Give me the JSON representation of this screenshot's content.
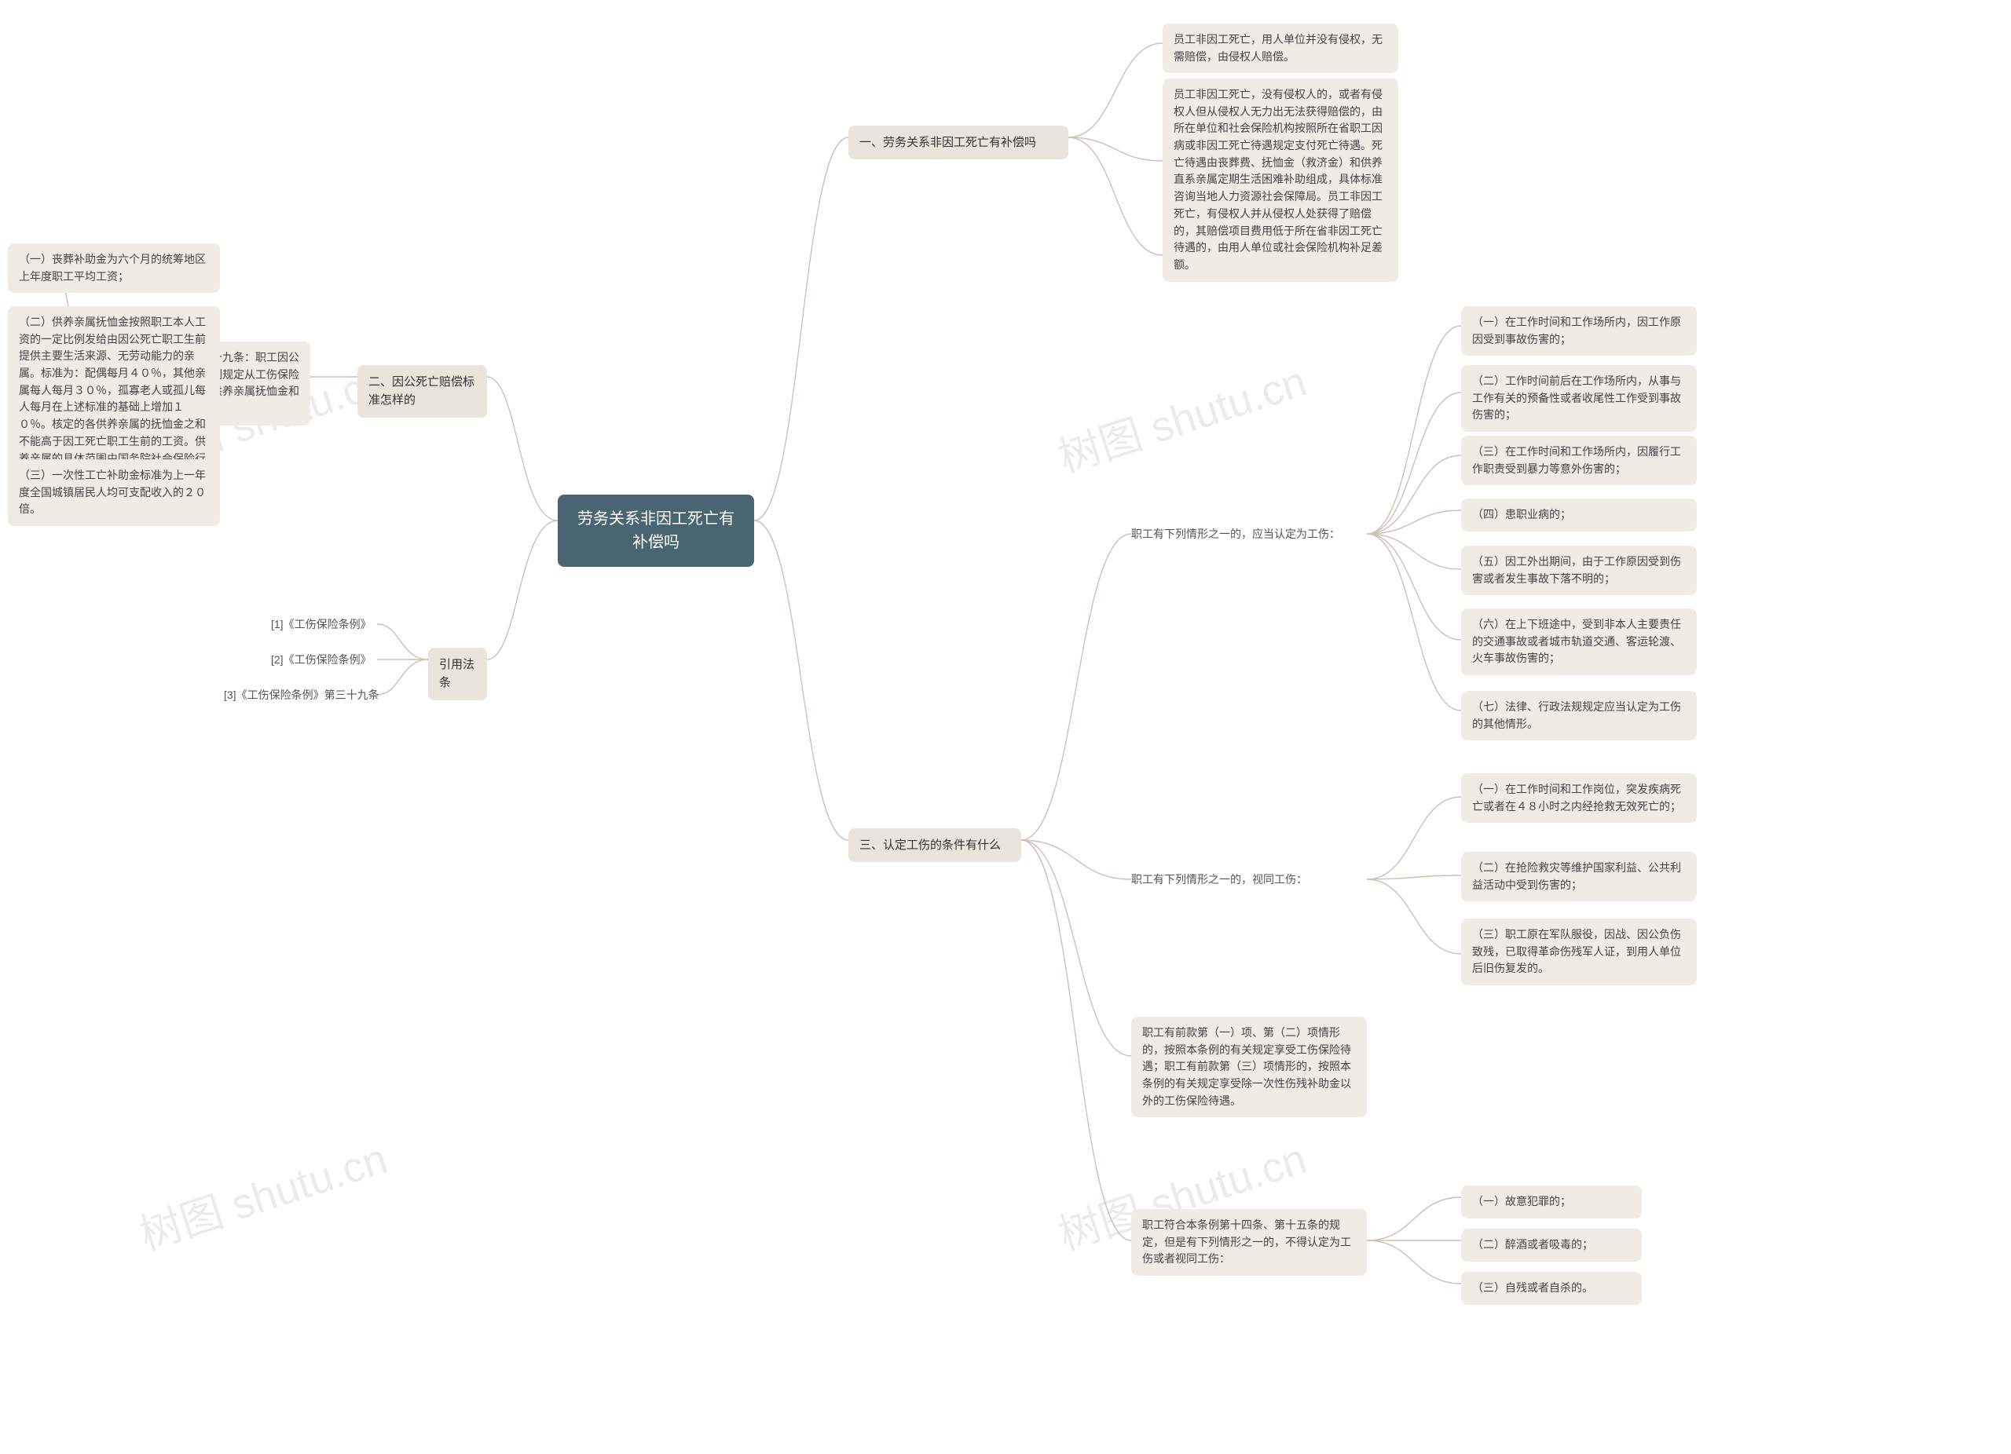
{
  "colors": {
    "root_bg": "#4a6572",
    "root_text": "#ffffff",
    "branch_bg": "#e9e4dc",
    "leaf_bg": "#efece6",
    "text": "#444444",
    "connector": "#c9c3b8",
    "watermark": "rgba(0,0,0,0.08)",
    "background": "#ffffff"
  },
  "watermarks": [
    "树图 shutu.cn",
    "树图 shutu.cn",
    "树图 shutu.cn",
    "树图 shutu.cn"
  ],
  "root": "劳务关系非因工死亡有补偿吗",
  "b1": {
    "title": "一、劳务关系非因工死亡有补偿吗",
    "n1": "员工非因工死亡，用人单位并没有侵权，无需赔偿，由侵权人赔偿。",
    "n2": "员工非因工死亡，没有侵权人的，或者有侵权人但从侵权人无力出无法获得赔偿的，由所在单位和社会保险机构按照所在省职工因病或非因工死亡待遇规定支付死亡待遇。死亡待遇由丧葬费、抚恤金（救济金）和供养直系亲属定期生活困难补助组成，具体标准咨询当地人力资源社会保障局。员工非因工死亡，有侵权人并从侵权人处获得了赔偿的，其赔偿项目费用低于所在省非因工死亡待遇的，由用人单位或社会保险机构补足差额。"
  },
  "b2": {
    "title": "二、因公死亡赔偿标准怎样的",
    "intro": "《工伤保险条例》第三十九条：职工因公死亡，其近亲属按照下列规定从工伤保险基金领取丧葬补助金、供养亲属抚恤金和一次性工亡补助金：",
    "n1": "（一）丧葬补助金为六个月的统筹地区上年度职工平均工资；",
    "n2": "（二）供养亲属抚恤金按照职工本人工资的一定比例发给由因公死亡职工生前提供主要生活来源、无劳动能力的亲属。标准为：配偶每月４０％，其他亲属每人每月３０％，孤寡老人或孤儿每人每月在上述标准的基础上增加１０％。核定的各供养亲属的抚恤金之和不能高于因工死亡职工生前的工资。供养亲属的具体范围由国务院社会保险行政部门规定；",
    "n3": "（三）一次性工亡补助金标准为上一年度全国城镇居民人均可支配收入的２０倍。"
  },
  "cite": {
    "title": "引用法条",
    "c1": "[1]《工伤保险条例》",
    "c2": "[2]《工伤保险条例》",
    "c3": "[3]《工伤保险条例》第三十九条"
  },
  "b3": {
    "title": "三、认定工伤的条件有什么",
    "g1": {
      "title": "职工有下列情形之一的，应当认定为工伤：",
      "i1": "（一）在工作时间和工作场所内，因工作原因受到事故伤害的；",
      "i2": "（二）工作时间前后在工作场所内，从事与工作有关的预备性或者收尾性工作受到事故伤害的；",
      "i3": "（三）在工作时间和工作场所内，因履行工作职责受到暴力等意外伤害的；",
      "i4": "（四）患职业病的；",
      "i5": "（五）因工外出期间，由于工作原因受到伤害或者发生事故下落不明的；",
      "i6": "（六）在上下班途中，受到非本人主要责任的交通事故或者城市轨道交通、客运轮渡、火车事故伤害的；",
      "i7": "（七）法律、行政法规规定应当认定为工伤的其他情形。"
    },
    "g2": {
      "title": "职工有下列情形之一的，视同工伤：",
      "i1": "（一）在工作时间和工作岗位，突发疾病死亡或者在４８小时之内经抢救无效死亡的；",
      "i2": "（二）在抢险救灾等维护国家利益、公共利益活动中受到伤害的；",
      "i3": "（三）职工原在军队服役，因战、因公负伤致残，已取得革命伤残军人证，到用人单位后旧伤复发的。"
    },
    "g3": "职工有前款第（一）项、第（二）项情形的，按照本条例的有关规定享受工伤保险待遇；职工有前款第（三）项情形的，按照本条例的有关规定享受除一次性伤残补助金以外的工伤保险待遇。",
    "g4": {
      "title": "职工符合本条例第十四条、第十五条的规定，但是有下列情形之一的，不得认定为工伤或者视同工伤：",
      "i1": "（一）故意犯罪的；",
      "i2": "（二）醉酒或者吸毒的；",
      "i3": "（三）自残或者自杀的。"
    }
  }
}
